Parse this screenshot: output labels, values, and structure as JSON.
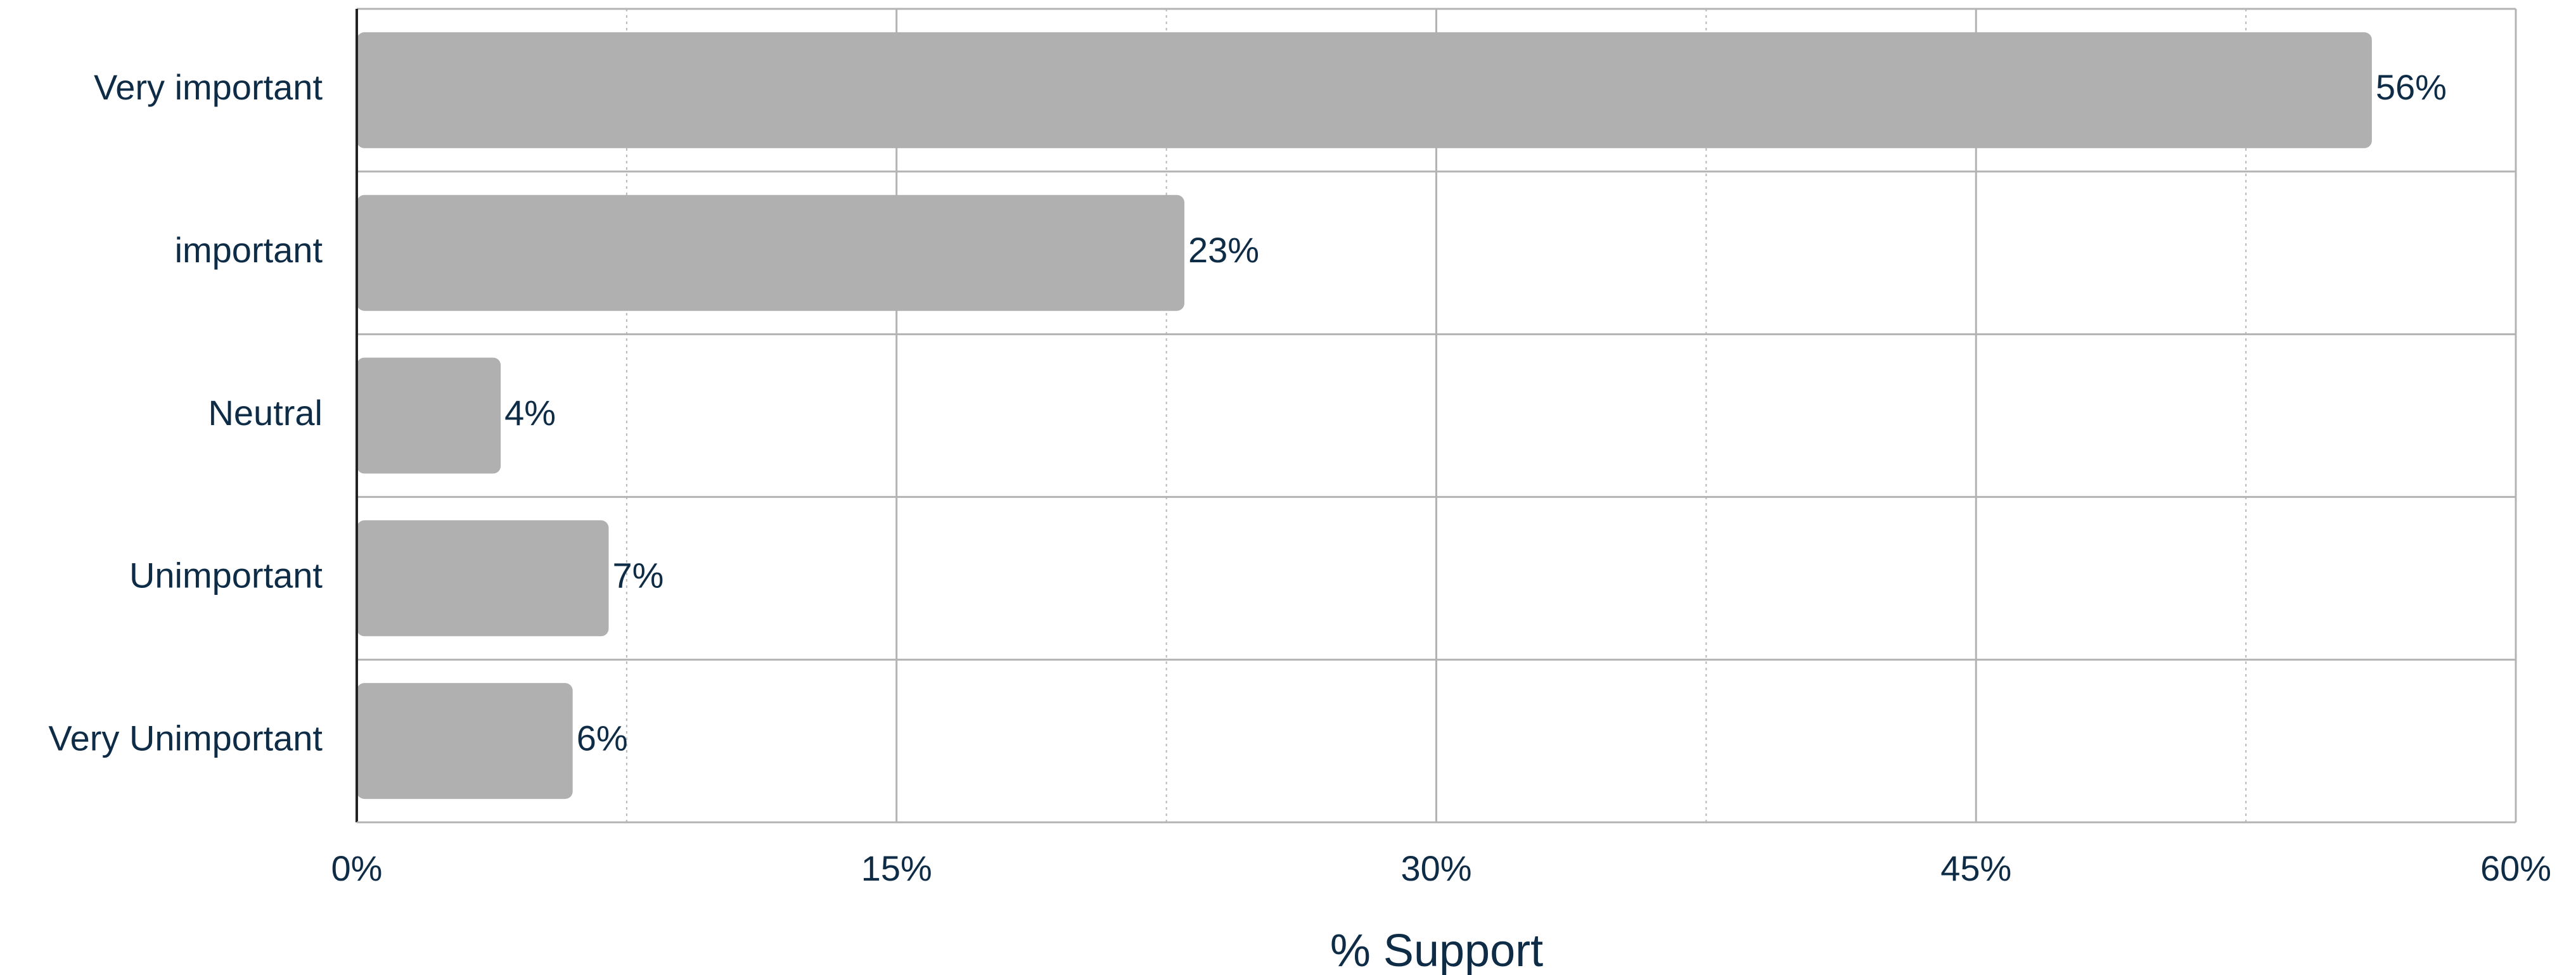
{
  "chart_data": {
    "type": "bar",
    "orientation": "horizontal",
    "categories": [
      "Very important",
      "important",
      "Neutral",
      "Unimportant",
      "Very Unimportant"
    ],
    "values": [
      56,
      23,
      4,
      7,
      6
    ],
    "value_labels": [
      "56%",
      "23%",
      "4%",
      "7%",
      "6%"
    ],
    "xlabel": "% Support",
    "ylabel": "",
    "title": "",
    "xlim": [
      0,
      60
    ],
    "x_ticks": [
      0,
      15,
      30,
      45,
      60
    ],
    "x_tick_labels": [
      "0%",
      "15%",
      "30%",
      "45%",
      "60%"
    ],
    "grid": true,
    "bar_color": "#b0b0b0",
    "text_color": "#0f2c47"
  }
}
